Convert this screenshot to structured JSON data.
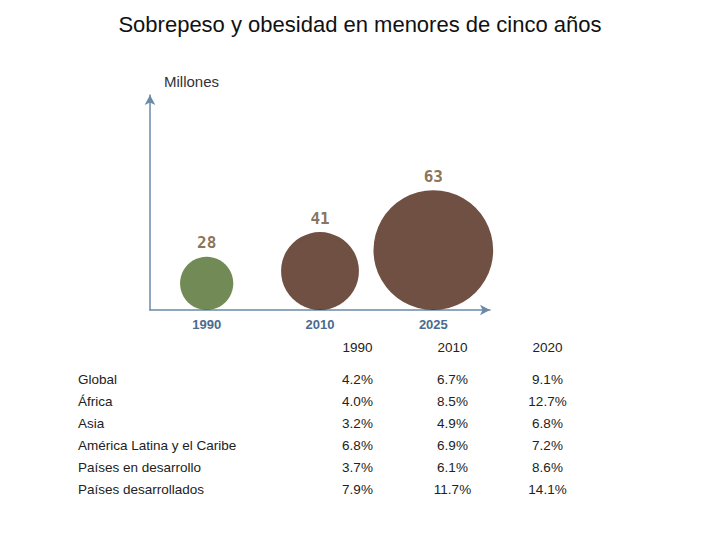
{
  "title": "Sobrepeso y obesidad en menores de cinco años",
  "chart_data": {
    "type": "bubble",
    "ylabel": "Millones",
    "categories": [
      "1990",
      "2010",
      "2025"
    ],
    "values": [
      28,
      41,
      63
    ],
    "colors": [
      "#4f6e2c",
      "#4b2414",
      "#4b2414"
    ],
    "data_labels": true,
    "tick_labels": "x",
    "grid": false
  },
  "table": {
    "columns": [
      "1990",
      "2010",
      "2020"
    ],
    "rows": [
      {
        "label": "Global",
        "values": [
          "4.2%",
          "6.7%",
          "9.1%"
        ]
      },
      {
        "label": "África",
        "values": [
          "4.0%",
          "8.5%",
          "12.7%"
        ]
      },
      {
        "label": "Asia",
        "values": [
          "3.2%",
          "4.9%",
          "6.8%"
        ]
      },
      {
        "label": "América Latina y el Caribe",
        "values": [
          "6.8%",
          "6.9%",
          "7.2%"
        ]
      },
      {
        "label": "Países en desarrollo",
        "values": [
          "3.7%",
          "6.1%",
          "8.6%"
        ]
      },
      {
        "label": "Países desarrollados",
        "values": [
          "7.9%",
          "11.7%",
          "14.1%"
        ]
      }
    ]
  }
}
